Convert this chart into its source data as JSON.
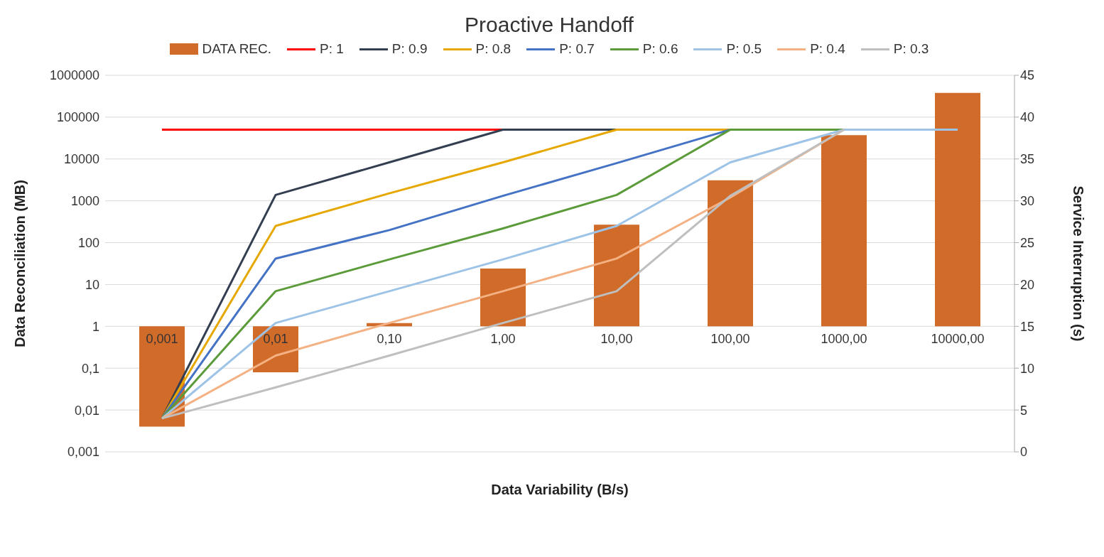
{
  "chart_data": {
    "type": "line",
    "title": "Proactive Handoff",
    "xlabel": "Data Variability (B/s)",
    "ylabel": "Data Reconciliation (MB)",
    "y2label": "Service Interruption (s)",
    "categories": [
      "0,001",
      "0,01",
      "0,10",
      "1,00",
      "10,00",
      "100,00",
      "1000,00",
      "10000,00"
    ],
    "log": "y",
    "ylim": [
      0.001,
      1000000
    ],
    "yticks": [
      {
        "value": 0.001,
        "label": "0,001"
      },
      {
        "value": 0.01,
        "label": "0,01"
      },
      {
        "value": 0.1,
        "label": "0,1"
      },
      1,
      10,
      100,
      1000,
      10000,
      100000,
      1000000
    ],
    "y2lim": [
      0,
      45
    ],
    "y2ticks": [
      0,
      5,
      10,
      15,
      20,
      25,
      30,
      35,
      40,
      45
    ],
    "grid": "y",
    "legend": "top",
    "series": [
      {
        "name": "DATA REC.",
        "type": "bar",
        "color": "#d06b2a",
        "base": [
          1,
          1,
          1,
          1,
          1,
          1,
          1,
          1
        ],
        "values": [
          -0.996,
          -0.92,
          0.2,
          23,
          269,
          3099,
          36999,
          379999
        ]
      },
      {
        "name": "P: 1",
        "axis": "y2",
        "color": "#ff0000",
        "values": [
          38.5,
          38.5,
          38.5,
          38.5,
          null,
          null,
          null,
          null
        ]
      },
      {
        "name": "P: 0.9",
        "axis": "y2",
        "color": "#333f50",
        "values": [
          4,
          30.7,
          34.6,
          38.5,
          38.5,
          null,
          null,
          null
        ]
      },
      {
        "name": "P: 0.8",
        "axis": "y2",
        "color": "#e6a800",
        "values": [
          4,
          27,
          30.9,
          34.6,
          38.5,
          38.5,
          null,
          null
        ]
      },
      {
        "name": "P: 0.7",
        "axis": "y2",
        "color": "#4472c4",
        "values": [
          4,
          23.1,
          26.5,
          30.6,
          34.5,
          38.5,
          null,
          null
        ]
      },
      {
        "name": "P: 0.6",
        "axis": "y2",
        "color": "#5b9b3a",
        "values": [
          4,
          19.2,
          23,
          26.7,
          30.7,
          38.5,
          38.5,
          null
        ]
      },
      {
        "name": "P: 0.5",
        "axis": "y2",
        "color": "#9dc3e6",
        "values": [
          4,
          15.4,
          19.2,
          23,
          27,
          34.6,
          38.5,
          38.5
        ]
      },
      {
        "name": "P: 0.4",
        "axis": "y2",
        "color": "#f4b183",
        "values": [
          4,
          11.5,
          15.4,
          19.2,
          23.1,
          30.4,
          38.5,
          null
        ]
      },
      {
        "name": "P: 0.3",
        "axis": "y2",
        "color": "#bfbfbf",
        "values": [
          4,
          7.7,
          11.5,
          15.4,
          19.2,
          30.6,
          38.5,
          null
        ]
      }
    ]
  }
}
